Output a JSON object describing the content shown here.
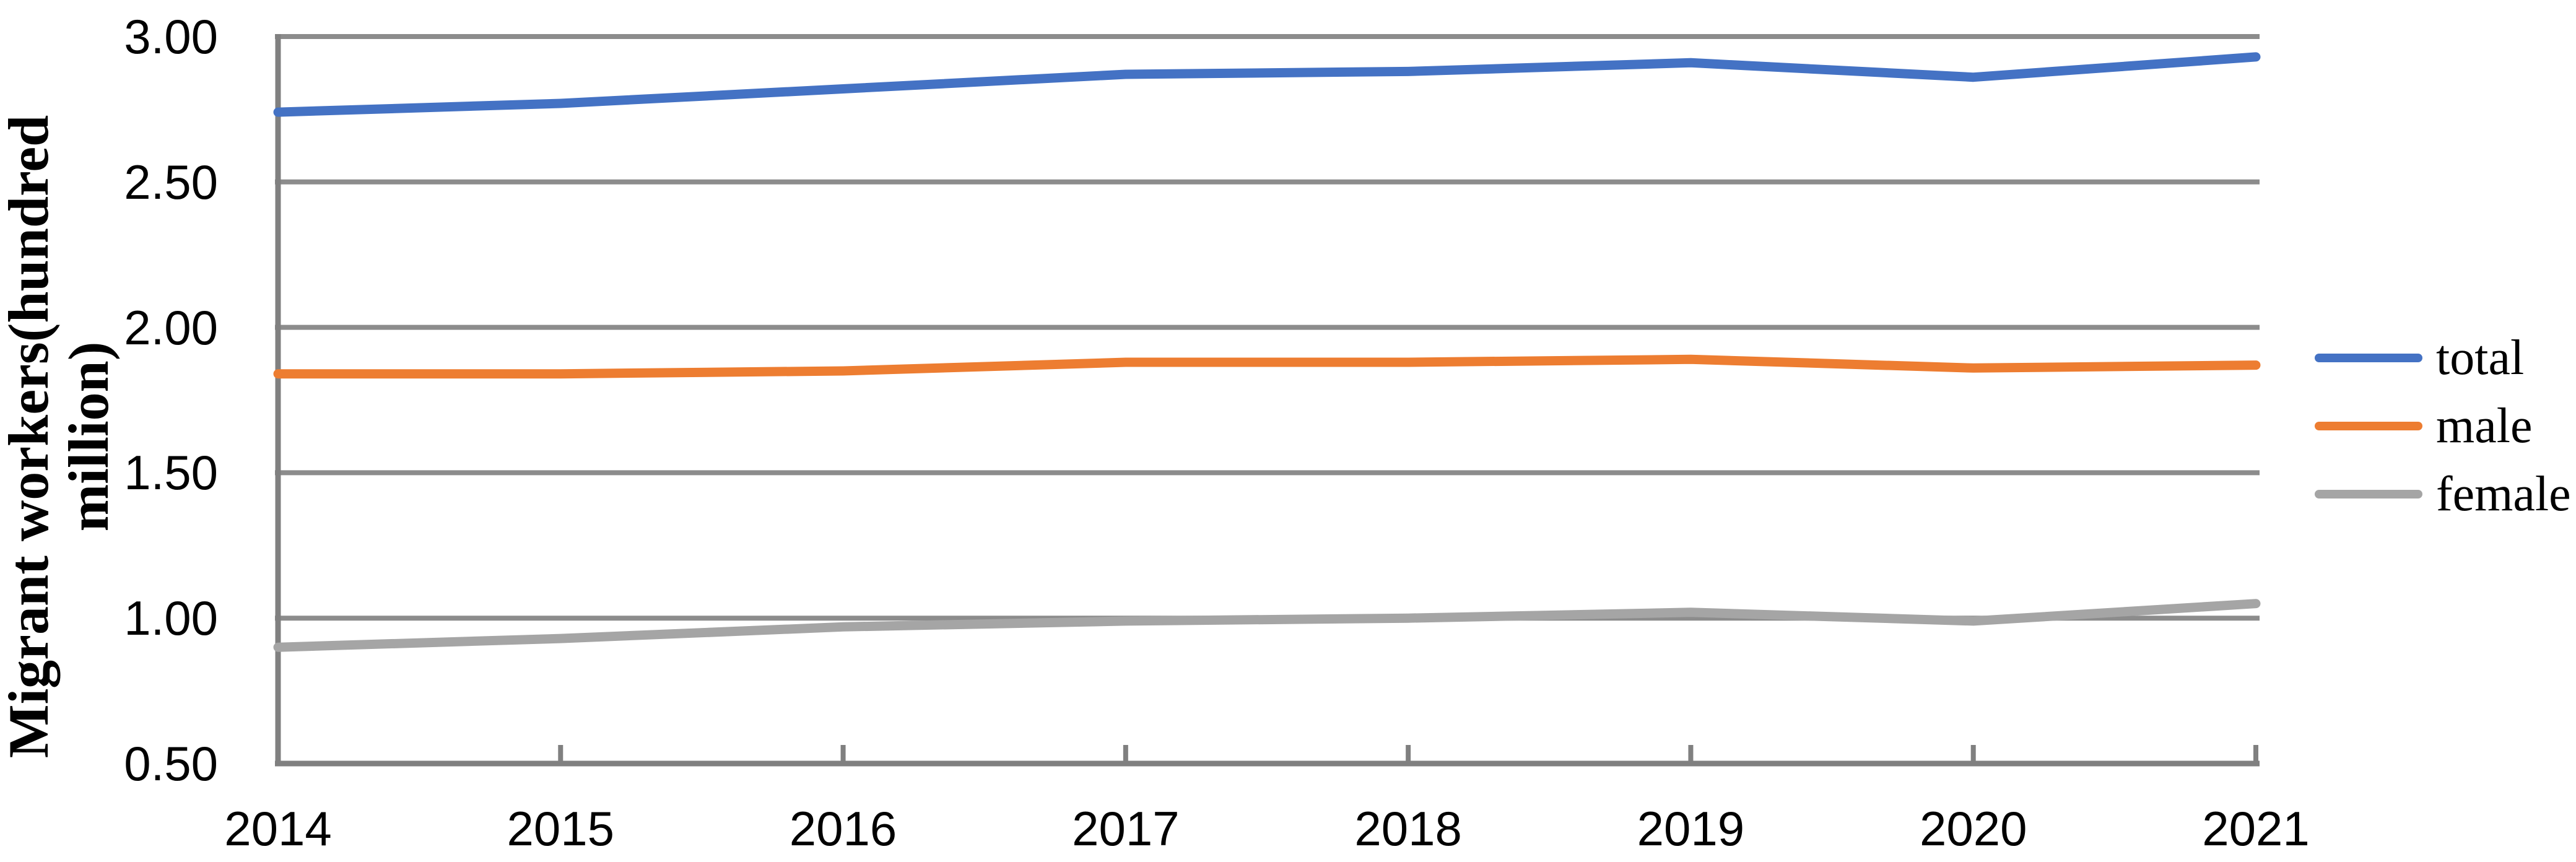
{
  "chart_data": {
    "type": "line",
    "title": "",
    "xlabel": "",
    "ylabel": "Migrant workers(hundred million)",
    "ylabel_lines": [
      "Migrant workers(hundred",
      "million)"
    ],
    "x": [
      "2014",
      "2015",
      "2016",
      "2017",
      "2018",
      "2019",
      "2020",
      "2021"
    ],
    "series": [
      {
        "name": "total",
        "color": "#4472C4",
        "values": [
          2.74,
          2.77,
          2.82,
          2.87,
          2.88,
          2.91,
          2.86,
          2.93
        ]
      },
      {
        "name": "male",
        "color": "#ED7D31",
        "values": [
          1.84,
          1.84,
          1.85,
          1.88,
          1.88,
          1.89,
          1.86,
          1.87
        ]
      },
      {
        "name": "female",
        "color": "#A5A5A5",
        "values": [
          0.9,
          0.93,
          0.97,
          0.99,
          1.0,
          1.02,
          0.99,
          1.05
        ]
      }
    ],
    "ylim": [
      0.5,
      3.0
    ],
    "ytick_step": 0.5,
    "ytick_labels": [
      "3.00",
      "2.50",
      "2.00",
      "1.50",
      "1.00",
      "0.50"
    ],
    "grid": true,
    "legend_position": "right",
    "colors": {
      "gridline": "#8C8C8C",
      "axis": "#808080",
      "tick_mark": "#808080",
      "text": "#000000",
      "background": "#FFFFFF"
    }
  }
}
